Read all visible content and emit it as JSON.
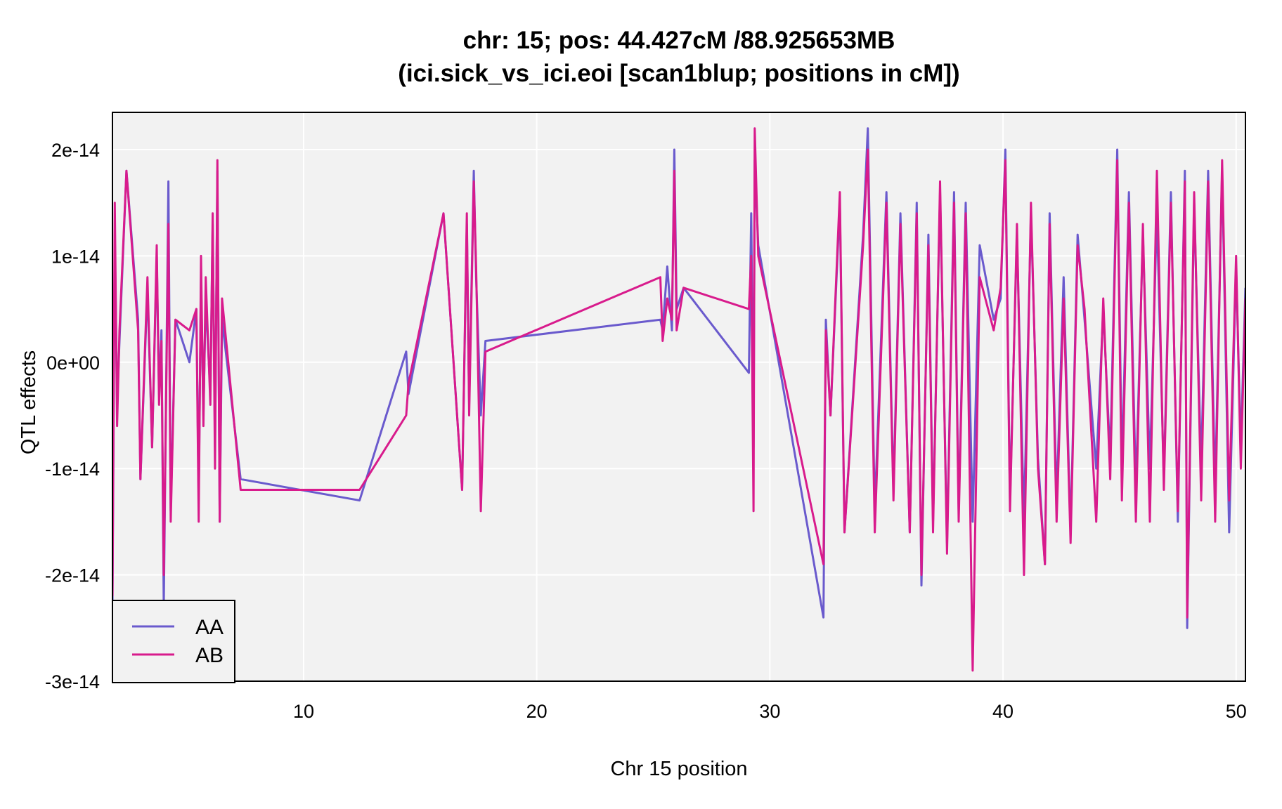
{
  "chart_data": {
    "type": "line",
    "title_line1": "chr: 15; pos: 44.427cM /88.925653MB",
    "title_line2": "(ici.sick_vs_ici.eoi [scan1blup; positions in cM])",
    "xlabel": "Chr 15 position",
    "ylabel": "QTL effects",
    "xlim": [
      1.8,
      50.4
    ],
    "ylim": [
      -3e-14,
      2.35e-14
    ],
    "x_ticks": [
      10,
      20,
      30,
      40,
      50
    ],
    "x_tick_labels": [
      "10",
      "20",
      "30",
      "40",
      "50"
    ],
    "y_ticks": [
      -3e-14,
      -2e-14,
      -1e-14,
      0,
      1e-14,
      2e-14
    ],
    "y_tick_labels": [
      "-3e-14",
      "-2e-14",
      "-1e-14",
      "0e+00",
      "1e-14",
      "2e-14"
    ],
    "grid": true,
    "legend_position": "bottom-left",
    "series": [
      {
        "name": "AA",
        "color": "#6A5ACD",
        "points": [
          [
            1.8,
            -2.3
          ],
          [
            1.9,
            1.2
          ],
          [
            2.0,
            -0.4
          ],
          [
            2.1,
            0.2
          ],
          [
            2.4,
            1.8
          ],
          [
            2.9,
            0.4
          ],
          [
            3.0,
            -1.1
          ],
          [
            3.3,
            0.7
          ],
          [
            3.5,
            -0.8
          ],
          [
            3.7,
            1.0
          ],
          [
            3.8,
            -0.3
          ],
          [
            3.9,
            0.3
          ],
          [
            4.0,
            -2.3
          ],
          [
            4.2,
            1.7
          ],
          [
            4.3,
            -1.4
          ],
          [
            4.5,
            0.4
          ],
          [
            5.1,
            0.0
          ],
          [
            5.4,
            0.5
          ],
          [
            5.5,
            -1.3
          ],
          [
            5.6,
            0.8
          ],
          [
            5.7,
            -0.5
          ],
          [
            5.8,
            0.6
          ],
          [
            6.0,
            -0.3
          ],
          [
            6.1,
            1.3
          ],
          [
            6.2,
            -0.8
          ],
          [
            6.3,
            1.8
          ],
          [
            6.4,
            -1.5
          ],
          [
            6.5,
            0.4
          ],
          [
            7.3,
            -1.1
          ],
          [
            12.4,
            -1.3
          ],
          [
            14.4,
            0.1
          ],
          [
            14.5,
            -0.3
          ],
          [
            16.0,
            1.4
          ],
          [
            16.8,
            -1.2
          ],
          [
            17.0,
            1.3
          ],
          [
            17.1,
            -0.4
          ],
          [
            17.3,
            1.8
          ],
          [
            17.4,
            0.8
          ],
          [
            17.6,
            -0.5
          ],
          [
            17.8,
            0.2
          ],
          [
            25.3,
            0.4
          ],
          [
            25.4,
            0.3
          ],
          [
            25.6,
            0.9
          ],
          [
            25.8,
            0.3
          ],
          [
            25.9,
            2.0
          ],
          [
            26.0,
            0.5
          ],
          [
            26.3,
            0.7
          ],
          [
            29.1,
            -0.1
          ],
          [
            29.2,
            1.4
          ],
          [
            29.3,
            -0.8
          ],
          [
            29.35,
            1.9
          ],
          [
            29.5,
            1.1
          ],
          [
            32.3,
            -2.4
          ],
          [
            32.4,
            0.4
          ],
          [
            32.6,
            -0.5
          ],
          [
            33.0,
            1.5
          ],
          [
            33.2,
            -1.6
          ],
          [
            34.0,
            1.2
          ],
          [
            34.2,
            2.2
          ],
          [
            34.5,
            -1.4
          ],
          [
            35.0,
            1.6
          ],
          [
            35.3,
            -1.2
          ],
          [
            35.6,
            1.4
          ],
          [
            36.0,
            -1.6
          ],
          [
            36.3,
            1.5
          ],
          [
            36.5,
            -2.1
          ],
          [
            36.8,
            1.2
          ],
          [
            37.0,
            -1.5
          ],
          [
            37.3,
            1.6
          ],
          [
            37.6,
            -1.7
          ],
          [
            37.9,
            1.6
          ],
          [
            38.1,
            -1.4
          ],
          [
            38.4,
            1.5
          ],
          [
            38.7,
            -1.5
          ],
          [
            39.0,
            1.1
          ],
          [
            39.6,
            0.4
          ],
          [
            39.9,
            0.6
          ],
          [
            40.1,
            2.0
          ],
          [
            40.3,
            -1.3
          ],
          [
            40.6,
            1.2
          ],
          [
            40.9,
            -1.5
          ],
          [
            41.2,
            1.4
          ],
          [
            41.5,
            -0.9
          ],
          [
            41.8,
            -1.9
          ],
          [
            42.0,
            1.4
          ],
          [
            42.3,
            -1.3
          ],
          [
            42.6,
            0.8
          ],
          [
            42.9,
            -1.6
          ],
          [
            43.2,
            1.2
          ],
          [
            43.5,
            0.4
          ],
          [
            44.0,
            -1.0
          ],
          [
            44.3,
            0.5
          ],
          [
            44.6,
            -0.9
          ],
          [
            44.9,
            2.0
          ],
          [
            45.1,
            -1.0
          ],
          [
            45.4,
            1.6
          ],
          [
            45.7,
            -1.2
          ],
          [
            46.0,
            1.2
          ],
          [
            46.3,
            -1.0
          ],
          [
            46.6,
            1.4
          ],
          [
            46.9,
            -1.1
          ],
          [
            47.2,
            1.6
          ],
          [
            47.5,
            -1.5
          ],
          [
            47.8,
            1.8
          ],
          [
            47.9,
            -2.5
          ],
          [
            48.2,
            1.5
          ],
          [
            48.5,
            -1.0
          ],
          [
            48.8,
            1.8
          ],
          [
            49.1,
            -1.2
          ],
          [
            49.4,
            1.8
          ],
          [
            49.7,
            -1.6
          ],
          [
            50.0,
            0.9
          ],
          [
            50.2,
            -0.8
          ],
          [
            50.4,
            0.7
          ]
        ]
      },
      {
        "name": "AB",
        "color": "#D81B8C",
        "points": [
          [
            1.8,
            -2.2
          ],
          [
            1.9,
            1.5
          ],
          [
            2.0,
            -0.6
          ],
          [
            2.1,
            0.3
          ],
          [
            2.4,
            1.8
          ],
          [
            2.9,
            0.3
          ],
          [
            3.0,
            -1.1
          ],
          [
            3.3,
            0.8
          ],
          [
            3.5,
            -0.8
          ],
          [
            3.7,
            1.1
          ],
          [
            3.8,
            -0.4
          ],
          [
            3.9,
            0.2
          ],
          [
            4.0,
            -2.0
          ],
          [
            4.2,
            1.3
          ],
          [
            4.3,
            -1.5
          ],
          [
            4.5,
            0.4
          ],
          [
            5.1,
            0.3
          ],
          [
            5.4,
            0.5
          ],
          [
            5.5,
            -1.5
          ],
          [
            5.6,
            1.0
          ],
          [
            5.7,
            -0.6
          ],
          [
            5.8,
            0.8
          ],
          [
            6.0,
            -0.4
          ],
          [
            6.1,
            1.4
          ],
          [
            6.2,
            -1.0
          ],
          [
            6.3,
            1.9
          ],
          [
            6.4,
            -1.5
          ],
          [
            6.5,
            0.6
          ],
          [
            7.3,
            -1.2
          ],
          [
            12.4,
            -1.2
          ],
          [
            14.4,
            -0.5
          ],
          [
            14.5,
            -0.2
          ],
          [
            16.0,
            1.4
          ],
          [
            16.8,
            -1.2
          ],
          [
            17.0,
            1.4
          ],
          [
            17.1,
            -0.5
          ],
          [
            17.3,
            1.7
          ],
          [
            17.4,
            0.9
          ],
          [
            17.6,
            -1.4
          ],
          [
            17.8,
            0.1
          ],
          [
            25.3,
            0.8
          ],
          [
            25.4,
            0.2
          ],
          [
            25.6,
            0.6
          ],
          [
            25.8,
            0.4
          ],
          [
            25.9,
            1.8
          ],
          [
            26.0,
            0.3
          ],
          [
            26.3,
            0.7
          ],
          [
            29.1,
            0.5
          ],
          [
            29.2,
            1.0
          ],
          [
            29.3,
            -1.4
          ],
          [
            29.35,
            2.2
          ],
          [
            29.5,
            1.0
          ],
          [
            32.3,
            -1.9
          ],
          [
            32.4,
            0.3
          ],
          [
            32.6,
            -0.5
          ],
          [
            33.0,
            1.6
          ],
          [
            33.2,
            -1.6
          ],
          [
            34.0,
            1.1
          ],
          [
            34.2,
            2.0
          ],
          [
            34.5,
            -1.6
          ],
          [
            35.0,
            1.5
          ],
          [
            35.3,
            -1.3
          ],
          [
            35.6,
            1.3
          ],
          [
            36.0,
            -1.6
          ],
          [
            36.3,
            1.4
          ],
          [
            36.5,
            -2.0
          ],
          [
            36.8,
            1.1
          ],
          [
            37.0,
            -1.6
          ],
          [
            37.3,
            1.7
          ],
          [
            37.6,
            -1.8
          ],
          [
            37.9,
            1.5
          ],
          [
            38.1,
            -1.5
          ],
          [
            38.4,
            1.4
          ],
          [
            38.7,
            -2.9
          ],
          [
            39.0,
            0.8
          ],
          [
            39.6,
            0.3
          ],
          [
            39.9,
            0.7
          ],
          [
            40.1,
            1.9
          ],
          [
            40.3,
            -1.4
          ],
          [
            40.6,
            1.3
          ],
          [
            40.9,
            -2.0
          ],
          [
            41.2,
            1.5
          ],
          [
            41.5,
            -1.0
          ],
          [
            41.8,
            -1.9
          ],
          [
            42.0,
            1.3
          ],
          [
            42.3,
            -1.5
          ],
          [
            42.6,
            0.6
          ],
          [
            42.9,
            -1.7
          ],
          [
            43.2,
            1.1
          ],
          [
            43.5,
            0.5
          ],
          [
            44.0,
            -1.5
          ],
          [
            44.3,
            0.6
          ],
          [
            44.6,
            -1.1
          ],
          [
            44.9,
            1.9
          ],
          [
            45.1,
            -1.3
          ],
          [
            45.4,
            1.5
          ],
          [
            45.7,
            -1.5
          ],
          [
            46.0,
            1.3
          ],
          [
            46.3,
            -1.5
          ],
          [
            46.6,
            1.8
          ],
          [
            46.9,
            -1.2
          ],
          [
            47.2,
            1.5
          ],
          [
            47.5,
            -1.4
          ],
          [
            47.8,
            1.7
          ],
          [
            47.9,
            -2.4
          ],
          [
            48.2,
            1.6
          ],
          [
            48.5,
            -1.3
          ],
          [
            48.8,
            1.7
          ],
          [
            49.1,
            -1.5
          ],
          [
            49.4,
            1.9
          ],
          [
            49.7,
            -1.3
          ],
          [
            50.0,
            1.0
          ],
          [
            50.2,
            -1.0
          ],
          [
            50.4,
            0.6
          ]
        ]
      }
    ],
    "y_unit_scale": 1e-14
  }
}
